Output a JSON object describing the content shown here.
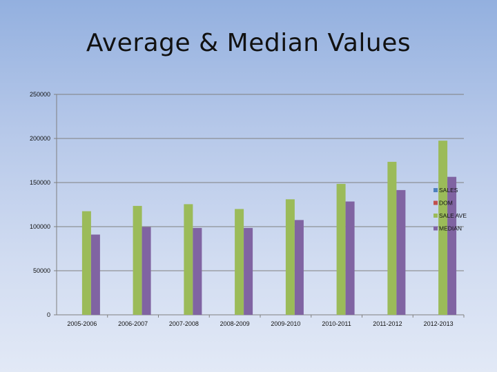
{
  "slide": {
    "title": "Average & Median Values"
  },
  "chart_data": {
    "type": "bar",
    "title": "",
    "xlabel": "",
    "ylabel": "",
    "categories": [
      "2005-2006",
      "2006-2007",
      "2007-2008",
      "2008-2009",
      "2009-2010",
      "2010-2011",
      "2011-2012",
      "2012-2013"
    ],
    "ylim": [
      0,
      250000
    ],
    "yticks": [
      0,
      50000,
      100000,
      150000,
      200000,
      250000
    ],
    "grid": true,
    "legend_position": "right",
    "series": [
      {
        "name": "SALES",
        "color": "#4f81bd",
        "values": [
          null,
          null,
          null,
          null,
          null,
          null,
          null,
          null
        ]
      },
      {
        "name": "DOM",
        "color": "#c0504d",
        "values": [
          null,
          null,
          null,
          null,
          null,
          null,
          null,
          null
        ]
      },
      {
        "name": "SALE AVE",
        "color": "#9bbb59",
        "values": [
          117500,
          123500,
          125500,
          120000,
          131000,
          148500,
          173500,
          197500
        ]
      },
      {
        "name": "MEDIAN",
        "color": "#8064a2",
        "values": [
          91000,
          99500,
          98500,
          98500,
          107500,
          128500,
          141500,
          156500
        ]
      }
    ]
  }
}
